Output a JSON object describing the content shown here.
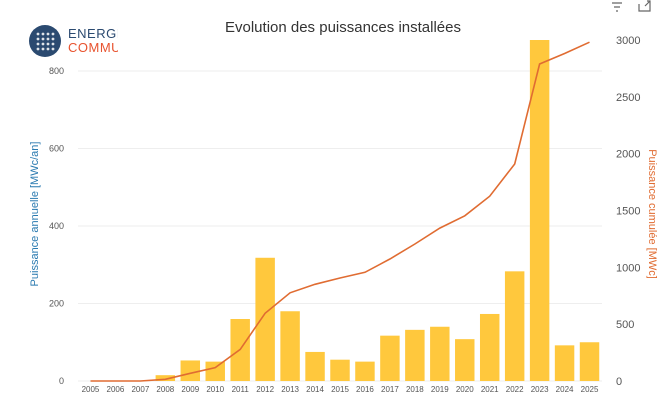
{
  "logo": {
    "line1": "ENERGIE",
    "line2": "COMMUNE"
  },
  "toolbar": {
    "filter_icon": "filter-icon",
    "expand_icon": "expand-icon"
  },
  "chart_data": {
    "type": "bar+line",
    "title": "Evolution des puissances installées",
    "categories": [
      "2005",
      "2006",
      "2007",
      "2008",
      "2009",
      "2010",
      "2011",
      "2012",
      "2013",
      "2014",
      "2015",
      "2016",
      "2017",
      "2018",
      "2019",
      "2020",
      "2021",
      "2022",
      "2023",
      "2024",
      "2025"
    ],
    "series": [
      {
        "name": "Puissance annuelle [MWc/an]",
        "type": "bar",
        "axis": "left",
        "color": "#ffc83d",
        "values": [
          0,
          0,
          0,
          15,
          53,
          50,
          160,
          318,
          180,
          75,
          55,
          50,
          117,
          132,
          140,
          108,
          173,
          283,
          880,
          92,
          100
        ]
      },
      {
        "name": "Puissance cumulée [MWc]",
        "type": "line",
        "axis": "right",
        "color": "#e06c32",
        "values": [
          0,
          0,
          0,
          15,
          68,
          118,
          278,
          596,
          776,
          851,
          906,
          956,
          1073,
          1205,
          1345,
          1453,
          1626,
          1909,
          2789,
          2881,
          2981
        ]
      }
    ],
    "ylabel_left": "Puissance annuelle [MWc/an]",
    "ylabel_right": "Puissance cumulée [MWc]",
    "ylim_left": [
      0,
      880
    ],
    "ylim_right": [
      0,
      3000
    ],
    "yticks_left": [
      0,
      200,
      400,
      600,
      800
    ],
    "yticks_right": [
      0,
      500,
      1000,
      1500,
      2000,
      2500,
      3000
    ],
    "ylabel_left_color": "#2a7ab0",
    "ylabel_right_color": "#e06c32",
    "grid": true
  }
}
